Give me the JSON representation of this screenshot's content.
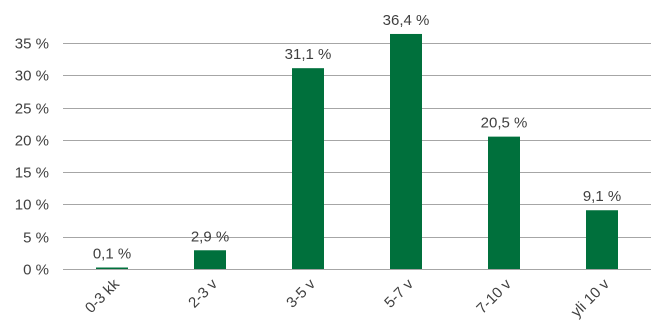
{
  "chart_data": {
    "type": "bar",
    "categories": [
      "0-3 kk",
      "2-3 v",
      "3-5 v",
      "5-7 v",
      "7-10 v",
      "yli 10 v"
    ],
    "values": [
      0.1,
      2.9,
      31.1,
      36.4,
      20.5,
      9.1
    ],
    "data_labels": [
      "0,1 %",
      "2,9 %",
      "31,1 %",
      "36,4 %",
      "20,5 %",
      "9,1 %"
    ],
    "y_ticks": [
      0,
      5,
      10,
      15,
      20,
      25,
      30,
      35
    ],
    "y_tick_labels": [
      "0 %",
      "5 %",
      "10 %",
      "15 %",
      "20 %",
      "25 %",
      "30 %",
      "35 %"
    ],
    "ylim": [
      0,
      35
    ],
    "grid": true,
    "legend": "none",
    "bar_color": "#00703c",
    "grid_color": "#a6a6a6",
    "text_color": "#404040"
  }
}
